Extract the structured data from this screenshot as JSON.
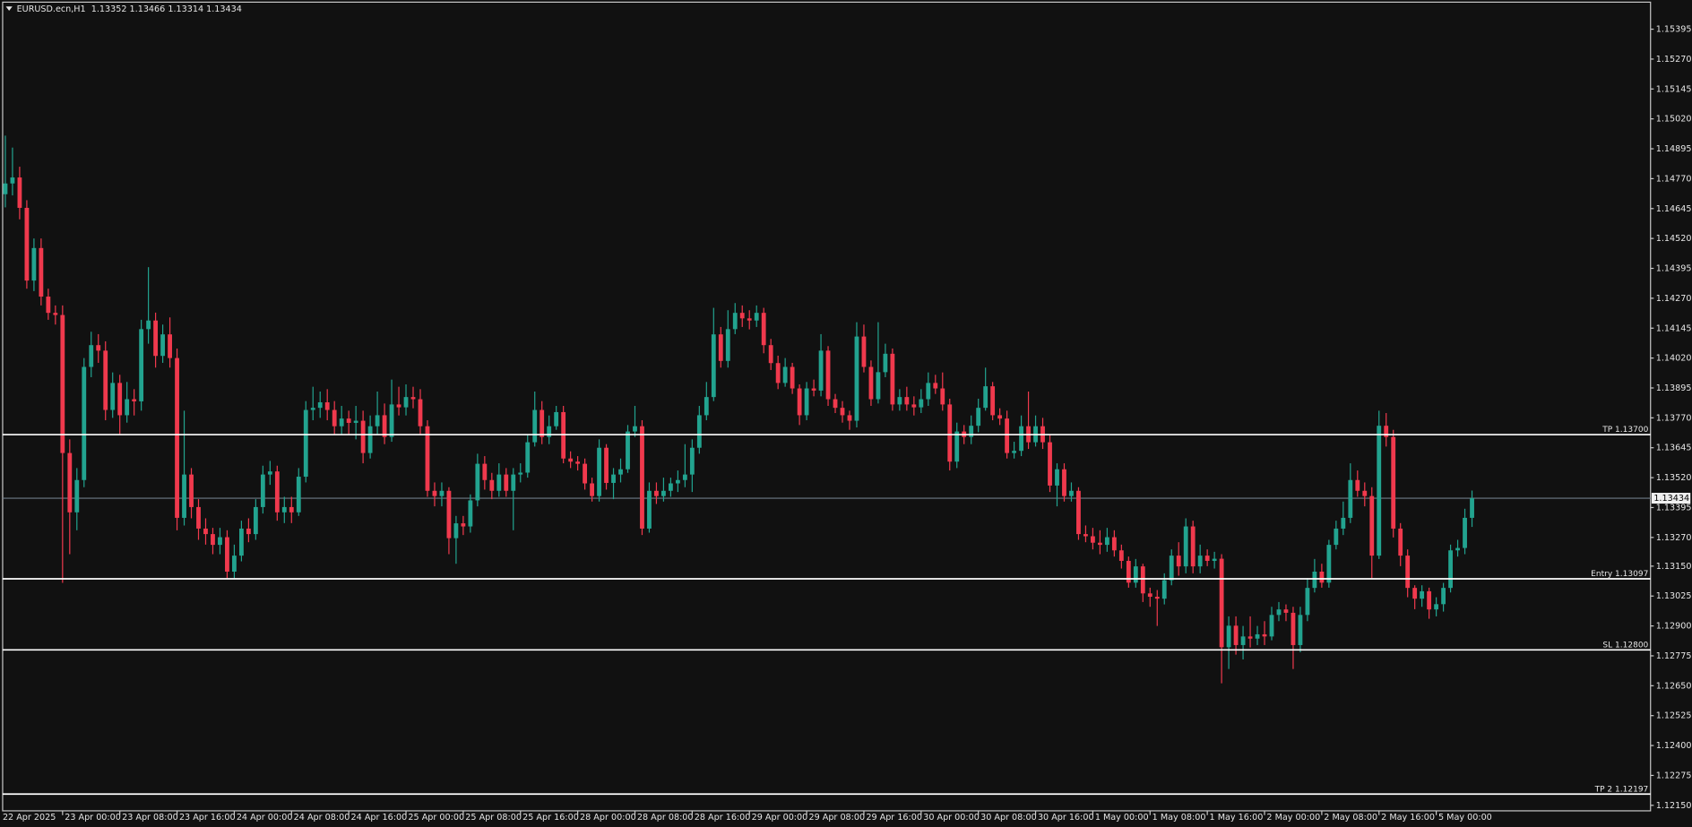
{
  "chart_data": {
    "type": "candlestick",
    "title": "EURUSD.ecn,H1  1.13352 1.13466 1.13314 1.13434",
    "up_color": "#22a38f",
    "down_color": "#f0394d",
    "background": "#111111",
    "ylim": [
      1.12127,
      1.15508
    ],
    "yticks": [
      1.15395,
      {
        "value": 1.1527,
        "label": "1.15270"
      },
      1.15145,
      {
        "value": 1.1502,
        "label": "1.15020"
      },
      1.14895,
      {
        "value": 1.1477,
        "label": "1.14770"
      },
      1.14645,
      {
        "value": 1.1452,
        "label": "1.14520"
      },
      1.14395,
      {
        "value": 1.1427,
        "label": "1.14270"
      },
      1.14145,
      {
        "value": 1.1402,
        "label": "1.14020"
      },
      1.13895,
      {
        "value": 1.1377,
        "label": "1.13770"
      },
      1.13645,
      {
        "value": 1.1352,
        "label": "1.13520"
      },
      1.13395,
      {
        "value": 1.1327,
        "label": "1.13270"
      },
      {
        "value": 1.1315,
        "label": "1.13150"
      },
      1.13025,
      {
        "value": 1.129,
        "label": "1.12900"
      },
      1.12775,
      {
        "value": 1.1265,
        "label": "1.12650"
      },
      1.12525,
      {
        "value": 1.124,
        "label": "1.12400"
      },
      1.12275,
      {
        "value": 1.1215,
        "label": "1.12150"
      }
    ],
    "levels": [
      {
        "label": "TP 1.13700",
        "value": 1.137
      },
      {
        "label": "Entry 1.13097",
        "value": 1.13097
      },
      {
        "label": "SL 1.12800",
        "value": 1.128
      },
      {
        "label": "TP 2 1.12197",
        "value": 1.12197
      }
    ],
    "current_price": 1.13434,
    "categories": [
      "22 Apr 2025",
      null,
      null,
      null,
      null,
      null,
      null,
      null,
      "23 Apr 00:00",
      null,
      null,
      null,
      null,
      null,
      null,
      null,
      "23 Apr 08:00",
      null,
      null,
      null,
      null,
      null,
      null,
      null,
      "23 Apr 16:00",
      null,
      null,
      null,
      null,
      null,
      null,
      null,
      "24 Apr 00:00",
      null,
      null,
      null,
      null,
      null,
      null,
      null,
      "24 Apr 08:00",
      null,
      null,
      null,
      null,
      null,
      null,
      null,
      "24 Apr 16:00",
      null,
      null,
      null,
      null,
      null,
      null,
      null,
      "25 Apr 00:00",
      null,
      null,
      null,
      null,
      null,
      null,
      null,
      "25 Apr 08:00",
      null,
      null,
      null,
      null,
      null,
      null,
      null,
      "25 Apr 16:00",
      null,
      null,
      null,
      null,
      null,
      null,
      null,
      "28 Apr 00:00",
      null,
      null,
      null,
      null,
      null,
      null,
      null,
      "28 Apr 08:00",
      null,
      null,
      null,
      null,
      null,
      null,
      null,
      "28 Apr 16:00",
      null,
      null,
      null,
      null,
      null,
      null,
      null,
      "29 Apr 00:00",
      null,
      null,
      null,
      null,
      null,
      null,
      null,
      "29 Apr 08:00",
      null,
      null,
      null,
      null,
      null,
      null,
      null,
      "29 Apr 16:00",
      null,
      null,
      null,
      null,
      null,
      null,
      null,
      "30 Apr 00:00",
      null,
      null,
      null,
      null,
      null,
      null,
      null,
      "30 Apr 08:00",
      null,
      null,
      null,
      null,
      null,
      null,
      null,
      "30 Apr 16:00",
      null,
      null,
      null,
      null,
      null,
      null,
      null,
      "1 May 00:00",
      null,
      null,
      null,
      null,
      null,
      null,
      null,
      "1 May 08:00",
      null,
      null,
      null,
      null,
      null,
      null,
      null,
      "1 May 16:00",
      null,
      null,
      null,
      null,
      null,
      null,
      null,
      "2 May 00:00",
      null,
      null,
      null,
      null,
      null,
      null,
      null,
      "2 May 08:00",
      null,
      null,
      null,
      null,
      null,
      null,
      null,
      "2 May 16:00",
      null,
      null,
      null,
      null,
      null,
      null,
      null,
      "5 May 00:00",
      null,
      null,
      null,
      null,
      null
    ],
    "open": [
      1.14705,
      1.1475,
      1.14775,
      1.14648,
      1.14344,
      1.1448,
      1.14277,
      1.14209,
      1.142,
      1.13623,
      1.13375,
      1.1351,
      1.13983,
      1.14074,
      1.14051,
      1.13803,
      1.13916,
      1.13781,
      1.13848,
      1.13839,
      1.14141,
      1.14177,
      1.14029,
      1.14119,
      1.1402,
      1.13352,
      1.13533,
      1.13397,
      1.13307,
      1.13284,
      1.13239,
      1.13271,
      1.13127,
      1.13194,
      1.13307,
      1.13284,
      1.13397,
      1.13533,
      1.13546,
      1.13375,
      1.13397,
      1.13375,
      1.13524,
      1.13803,
      1.13812,
      1.13835,
      1.13803,
      1.13735,
      1.13767,
      1.13749,
      1.13758,
      1.13623,
      1.13735,
      1.13781,
      1.1369,
      1.13826,
      1.13814,
      1.13857,
      1.13848,
      1.13735,
      1.13465,
      1.13443,
      1.13465,
      1.13267,
      1.13329,
      1.13316,
      1.13425,
      1.13578,
      1.1351,
      1.13465,
      1.13533,
      1.13465,
      1.13533,
      1.13541,
      1.13668,
      1.13803,
      1.1369,
      1.13735,
      1.13794,
      1.136,
      1.13587,
      1.13578,
      1.13496,
      1.13443,
      1.13645,
      1.13498,
      1.13533,
      1.13555,
      1.13713,
      1.13735,
      1.13307,
      1.13465,
      1.13443,
      1.13465,
      1.13496,
      1.1351,
      1.13533,
      1.13645,
      1.13781,
      1.13857,
      1.14119,
      1.14008,
      1.14141,
      1.14209,
      1.14186,
      1.14177,
      1.14209,
      1.14074,
      1.13999,
      1.13916,
      1.13983,
      1.13893,
      1.13781,
      1.13893,
      1.13884,
      1.14051,
      1.13848,
      1.13812,
      1.13781,
      1.13758,
      1.1411,
      1.13983,
      1.13848,
      1.13961,
      1.14038,
      1.13826,
      1.13857,
      1.13826,
      1.13814,
      1.13848,
      1.13916,
      1.13893,
      1.13826,
      1.13587,
      1.13713,
      1.1369,
      1.13737,
      1.13812,
      1.13902,
      1.13781,
      1.13767,
      1.13623,
      1.13632,
      1.13735,
      1.13668,
      1.13735,
      1.13668,
      1.13487,
      1.13555,
      1.13443,
      1.13465,
      1.13284,
      1.13275,
      1.13248,
      1.13239,
      1.13271,
      1.13216,
      1.13172,
      1.13081,
      1.13149,
      1.13036,
      1.13022,
      1.13014,
      1.13091,
      1.13194,
      1.13149,
      1.13316,
      1.13149,
      1.13194,
      1.13172,
      1.13181,
      1.12811,
      1.12901,
      1.1282,
      1.12856,
      1.12847,
      1.12865,
      1.12856,
      1.12946,
      1.12969,
      1.12955,
      1.1282,
      1.12946,
      1.13059,
      1.13127,
      1.13081,
      1.13239,
      1.13307,
      1.13352,
      1.1351,
      1.13465,
      1.13443,
      1.13194,
      1.13737,
      1.1369,
      1.13307,
      1.13194,
      1.13059,
      1.13014,
      1.13045,
      1.12969,
      1.12991,
      1.13059,
      1.13216,
      1.13226,
      1.13352
    ],
    "high": [
      1.1495,
      1.149,
      1.1482,
      1.1468,
      1.1452,
      1.1452,
      1.1431,
      1.1424,
      1.1424,
      1.1368,
      1.1356,
      1.1402,
      1.1413,
      1.1412,
      1.1409,
      1.1396,
      1.1395,
      1.1392,
      1.1389,
      1.1418,
      1.144,
      1.1421,
      1.1416,
      1.1419,
      1.1406,
      1.138,
      1.1356,
      1.1343,
      1.1335,
      1.1331,
      1.1331,
      1.133,
      1.1324,
      1.1334,
      1.1335,
      1.1343,
      1.1357,
      1.1359,
      1.1357,
      1.1344,
      1.1344,
      1.1356,
      1.1384,
      1.139,
      1.1388,
      1.1389,
      1.1384,
      1.1382,
      1.138,
      1.1382,
      1.138,
      1.1378,
      1.1388,
      1.1383,
      1.1393,
      1.139,
      1.1391,
      1.139,
      1.1389,
      1.1376,
      1.135,
      1.135,
      1.1348,
      1.1336,
      1.1336,
      1.1345,
      1.1362,
      1.1361,
      1.1354,
      1.1358,
      1.1356,
      1.1356,
      1.1358,
      1.137,
      1.1388,
      1.1384,
      1.1378,
      1.1382,
      1.1382,
      1.1363,
      1.1361,
      1.136,
      1.1352,
      1.1368,
      1.1366,
      1.1356,
      1.136,
      1.1374,
      1.1382,
      1.1376,
      1.135,
      1.135,
      1.1352,
      1.1352,
      1.1355,
      1.1366,
      1.1368,
      1.1382,
      1.1392,
      1.1423,
      1.1415,
      1.1422,
      1.1425,
      1.1424,
      1.1422,
      1.1424,
      1.1423,
      1.141,
      1.1403,
      1.1402,
      1.14,
      1.1391,
      1.1392,
      1.1393,
      1.1412,
      1.1407,
      1.1387,
      1.1384,
      1.138,
      1.1417,
      1.1416,
      1.1401,
      1.1417,
      1.1408,
      1.1406,
      1.1389,
      1.139,
      1.1386,
      1.1389,
      1.1396,
      1.1395,
      1.1396,
      1.1385,
      1.1375,
      1.1374,
      1.1378,
      1.1385,
      1.1398,
      1.1392,
      1.1381,
      1.138,
      1.1367,
      1.1378,
      1.1388,
      1.1378,
      1.1377,
      1.137,
      1.1358,
      1.1358,
      1.135,
      1.1348,
      1.1332,
      1.1331,
      1.133,
      1.1331,
      1.133,
      1.1324,
      1.1319,
      1.1318,
      1.1316,
      1.1306,
      1.1305,
      1.1312,
      1.1322,
      1.1325,
      1.1335,
      1.1334,
      1.1324,
      1.1322,
      1.1321,
      1.132,
      1.1294,
      1.1294,
      1.129,
      1.1294,
      1.129,
      1.1292,
      1.1298,
      1.13,
      1.1299,
      1.1298,
      1.1298,
      1.131,
      1.1318,
      1.1316,
      1.1326,
      1.1334,
      1.1342,
      1.1358,
      1.1355,
      1.135,
      1.1348,
      1.138,
      1.1379,
      1.1372,
      1.1333,
      1.1322,
      1.1307,
      1.1307,
      1.1306,
      1.1302,
      1.1308,
      1.1324,
      1.1326,
      1.1339,
      1.13466
    ],
    "low": [
      1.1465,
      1.147,
      1.146,
      1.1431,
      1.143,
      1.1424,
      1.1418,
      1.1416,
      1.1308,
      1.132,
      1.133,
      1.1348,
      1.1394,
      1.14,
      1.1376,
      1.1377,
      1.137,
      1.1375,
      1.1378,
      1.138,
      1.1408,
      1.1398,
      1.14,
      1.1398,
      1.133,
      1.1332,
      1.1335,
      1.1326,
      1.1324,
      1.132,
      1.132,
      1.131,
      1.131,
      1.1317,
      1.1325,
      1.1326,
      1.1337,
      1.1349,
      1.1334,
      1.1333,
      1.1333,
      1.1336,
      1.135,
      1.1376,
      1.1377,
      1.1376,
      1.137,
      1.137,
      1.137,
      1.1368,
      1.1358,
      1.136,
      1.137,
      1.1366,
      1.1367,
      1.1378,
      1.1378,
      1.1381,
      1.137,
      1.1344,
      1.134,
      1.134,
      1.132,
      1.1316,
      1.1328,
      1.1329,
      1.134,
      1.1347,
      1.1343,
      1.1344,
      1.1344,
      1.133,
      1.135,
      1.1352,
      1.1365,
      1.1366,
      1.1366,
      1.1372,
      1.1358,
      1.1356,
      1.1355,
      1.1347,
      1.1342,
      1.1342,
      1.1347,
      1.1343,
      1.135,
      1.1354,
      1.1369,
      1.1328,
      1.1329,
      1.1341,
      1.1342,
      1.1344,
      1.1346,
      1.1348,
      1.1346,
      1.1362,
      1.1376,
      1.1384,
      1.1398,
      1.1398,
      1.1412,
      1.1415,
      1.1414,
      1.1415,
      1.1404,
      1.1397,
      1.1389,
      1.139,
      1.1387,
      1.1374,
      1.1376,
      1.1386,
      1.1386,
      1.1382,
      1.1379,
      1.1375,
      1.1372,
      1.1373,
      1.1396,
      1.1382,
      1.1383,
      1.1394,
      1.138,
      1.138,
      1.138,
      1.1378,
      1.1379,
      1.1382,
      1.1387,
      1.138,
      1.1355,
      1.1356,
      1.1366,
      1.1366,
      1.1371,
      1.138,
      1.1376,
      1.1374,
      1.136,
      1.136,
      1.1361,
      1.1364,
      1.1365,
      1.1364,
      1.1346,
      1.134,
      1.1342,
      1.1342,
      1.1326,
      1.1325,
      1.1322,
      1.132,
      1.1321,
      1.1319,
      1.1314,
      1.1306,
      1.1306,
      1.13,
      1.1298,
      1.129,
      1.1299,
      1.1307,
      1.1311,
      1.1312,
      1.1312,
      1.1312,
      1.1315,
      1.1314,
      1.1266,
      1.1272,
      1.1278,
      1.1276,
      1.1281,
      1.1282,
      1.1282,
      1.1284,
      1.1292,
      1.1292,
      1.1272,
      1.1279,
      1.1292,
      1.1304,
      1.1306,
      1.1306,
      1.1322,
      1.1328,
      1.1333,
      1.1344,
      1.134,
      1.131,
      1.1318,
      1.1365,
      1.1327,
      1.1315,
      1.1302,
      1.1297,
      1.1298,
      1.1293,
      1.1294,
      1.1296,
      1.1304,
      1.1319,
      1.132,
      1.13314
    ],
    "close": [
      1.1475,
      1.14775,
      1.14648,
      1.14344,
      1.1448,
      1.14277,
      1.14209,
      1.142,
      1.13623,
      1.13375,
      1.1351,
      1.13983,
      1.14074,
      1.14051,
      1.13803,
      1.13916,
      1.13781,
      1.13848,
      1.13839,
      1.14141,
      1.14177,
      1.14029,
      1.14119,
      1.1402,
      1.13352,
      1.13533,
      1.13397,
      1.13307,
      1.13284,
      1.13239,
      1.13271,
      1.13127,
      1.13194,
      1.13307,
      1.13284,
      1.13397,
      1.13533,
      1.13546,
      1.13375,
      1.13397,
      1.13375,
      1.13524,
      1.13803,
      1.13812,
      1.13835,
      1.13803,
      1.13735,
      1.13767,
      1.13749,
      1.13758,
      1.13623,
      1.13735,
      1.13781,
      1.1369,
      1.13826,
      1.13814,
      1.13857,
      1.13848,
      1.13735,
      1.13465,
      1.13443,
      1.13465,
      1.13267,
      1.13329,
      1.13316,
      1.13425,
      1.13578,
      1.1351,
      1.13465,
      1.13533,
      1.13465,
      1.13533,
      1.13541,
      1.13668,
      1.13803,
      1.1369,
      1.13735,
      1.13794,
      1.136,
      1.13587,
      1.13578,
      1.13496,
      1.13443,
      1.13645,
      1.13498,
      1.13533,
      1.13555,
      1.13713,
      1.13735,
      1.13307,
      1.13465,
      1.13443,
      1.13465,
      1.13496,
      1.1351,
      1.13533,
      1.13645,
      1.13781,
      1.13857,
      1.14119,
      1.14008,
      1.14141,
      1.14209,
      1.14186,
      1.14177,
      1.14209,
      1.14074,
      1.13999,
      1.13916,
      1.13983,
      1.13893,
      1.13781,
      1.13893,
      1.13884,
      1.14051,
      1.13848,
      1.13812,
      1.13781,
      1.13758,
      1.1411,
      1.13983,
      1.13848,
      1.13961,
      1.14038,
      1.13826,
      1.13857,
      1.13826,
      1.13814,
      1.13848,
      1.13916,
      1.13893,
      1.13826,
      1.13587,
      1.13713,
      1.1369,
      1.13737,
      1.13812,
      1.13902,
      1.13781,
      1.13767,
      1.13623,
      1.13632,
      1.13735,
      1.13668,
      1.13735,
      1.13668,
      1.13487,
      1.13555,
      1.13443,
      1.13465,
      1.13284,
      1.13275,
      1.13248,
      1.13239,
      1.13271,
      1.13216,
      1.13172,
      1.13081,
      1.13149,
      1.13036,
      1.13022,
      1.13014,
      1.13091,
      1.13194,
      1.13149,
      1.13316,
      1.13149,
      1.13194,
      1.13172,
      1.13181,
      1.12811,
      1.12901,
      1.1282,
      1.12856,
      1.12847,
      1.12865,
      1.12856,
      1.12946,
      1.12969,
      1.12955,
      1.1282,
      1.12946,
      1.13059,
      1.13127,
      1.13081,
      1.13239,
      1.13307,
      1.13352,
      1.1351,
      1.13465,
      1.13443,
      1.13194,
      1.13737,
      1.1369,
      1.13307,
      1.13194,
      1.13059,
      1.13014,
      1.13045,
      1.12969,
      1.12991,
      1.13059,
      1.13216,
      1.13226,
      1.13352,
      1.13434
    ]
  }
}
